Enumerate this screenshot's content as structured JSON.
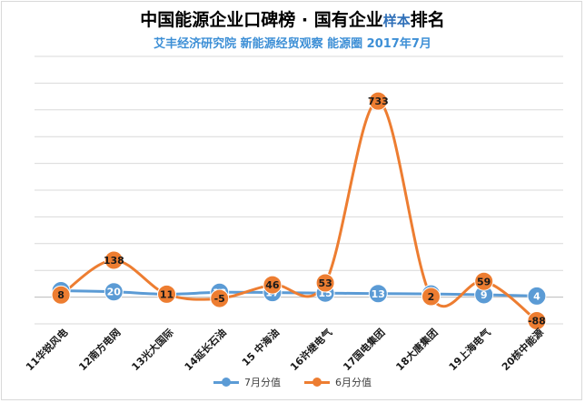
{
  "title": {
    "main": "中国能源企业口碑榜 · 国有企业",
    "sample": "样本",
    "suffix": "排名"
  },
  "subtitle": "艾丰经济研究院 新能源经贸观察 能源圈 2017年7月",
  "colors": {
    "series_july": "#5b9bd5",
    "series_june": "#ed7d31",
    "title_blue": "#2f6fb8",
    "subtitle_blue": "#3d8fd6",
    "grid": "#d9d9d9"
  },
  "chart_data": {
    "type": "line",
    "smooth": true,
    "categories": [
      "11华锐风电",
      "12南方电网",
      "13光大国际",
      "14延长石油",
      "15 中海油",
      "16许继电气",
      "17国电集团",
      "18大唐集团",
      "19上海电气",
      "20核中能源"
    ],
    "series": [
      {
        "name": "7月分值",
        "values": [
          24,
          20,
          11,
          18,
          17,
          15,
          13,
          12,
          9,
          4
        ],
        "data_labels": [
          "24",
          "20",
          "11",
          "18",
          "17",
          "15",
          "13",
          "12",
          "9",
          "4"
        ]
      },
      {
        "name": "6月分值",
        "values": [
          8,
          138,
          11,
          -5,
          46,
          53,
          733,
          2,
          59,
          -88
        ],
        "data_labels": [
          "8",
          "138",
          "11",
          "-5",
          "46",
          "53",
          "733",
          "2",
          "59",
          "-88"
        ]
      }
    ],
    "ylim": [
      -100,
      900
    ],
    "grid": true,
    "y_tick_labels_shown": false,
    "legend_position": "bottom"
  }
}
